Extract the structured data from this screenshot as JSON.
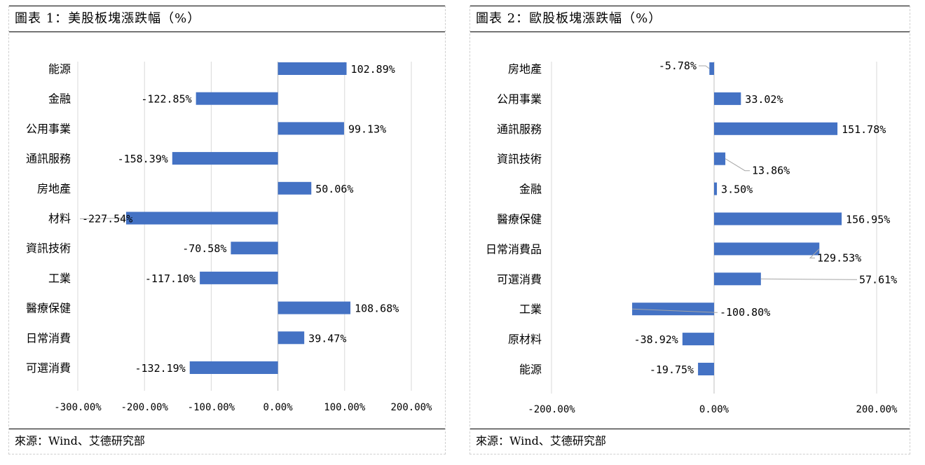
{
  "panels": [
    {
      "title": "圖表 1：美股板塊漲跌幅（%）",
      "source": "來源：Wind、艾德研究部"
    },
    {
      "title": "圖表 2：歐股板塊漲跌幅（%）",
      "source": "來源：Wind、艾德研究部"
    }
  ],
  "chart_data": [
    {
      "type": "bar",
      "orientation": "horizontal",
      "title": "圖表 1：美股板塊漲跌幅（%）",
      "categories": [
        "能源",
        "金融",
        "公用事業",
        "通訊服務",
        "房地產",
        "材料",
        "資訊技術",
        "工業",
        "醫療保健",
        "日常消費",
        "可選消費"
      ],
      "values": [
        102.89,
        -122.85,
        99.13,
        -158.39,
        50.06,
        -227.54,
        -70.58,
        -117.1,
        108.68,
        39.47,
        -132.19
      ],
      "value_labels": [
        "102.89%",
        "-122.85%",
        "99.13%",
        "-158.39%",
        "50.06%",
        "-227.54%",
        "-70.58%",
        "-117.10%",
        "108.68%",
        "39.47%",
        "-132.19%"
      ],
      "xlim": [
        -300,
        200
      ],
      "xticks": [
        -300,
        -200,
        -100,
        0,
        100,
        200
      ],
      "xtick_labels": [
        "-300.00%",
        "-200.00%",
        "-100.00%",
        "0.00%",
        "100.00%",
        "200.00%"
      ],
      "grid": "vertical",
      "bar_color": "#4472C4"
    },
    {
      "type": "bar",
      "orientation": "horizontal",
      "title": "圖表 2：歐股板塊漲跌幅（%）",
      "categories": [
        "房地產",
        "公用事業",
        "通訊服務",
        "資訊技術",
        "金融",
        "醫療保健",
        "日常消費品",
        "可選消費",
        "工業",
        "原材料",
        "能源"
      ],
      "values": [
        -5.78,
        33.02,
        151.78,
        13.86,
        3.5,
        156.95,
        129.53,
        57.61,
        -100.8,
        -38.92,
        -19.75
      ],
      "value_labels": [
        "-5.78%",
        "33.02%",
        "151.78%",
        "13.86%",
        "3.50%",
        "156.95%",
        "129.53%",
        "57.61%",
        "-100.80%",
        "-38.92%",
        "-19.75%"
      ],
      "xlim": [
        -200,
        200
      ],
      "xticks": [
        -200,
        0,
        200
      ],
      "xtick_labels": [
        "-200.00%",
        "0.00%",
        "200.00%"
      ],
      "grid": "vertical",
      "bar_color": "#4472C4"
    }
  ]
}
